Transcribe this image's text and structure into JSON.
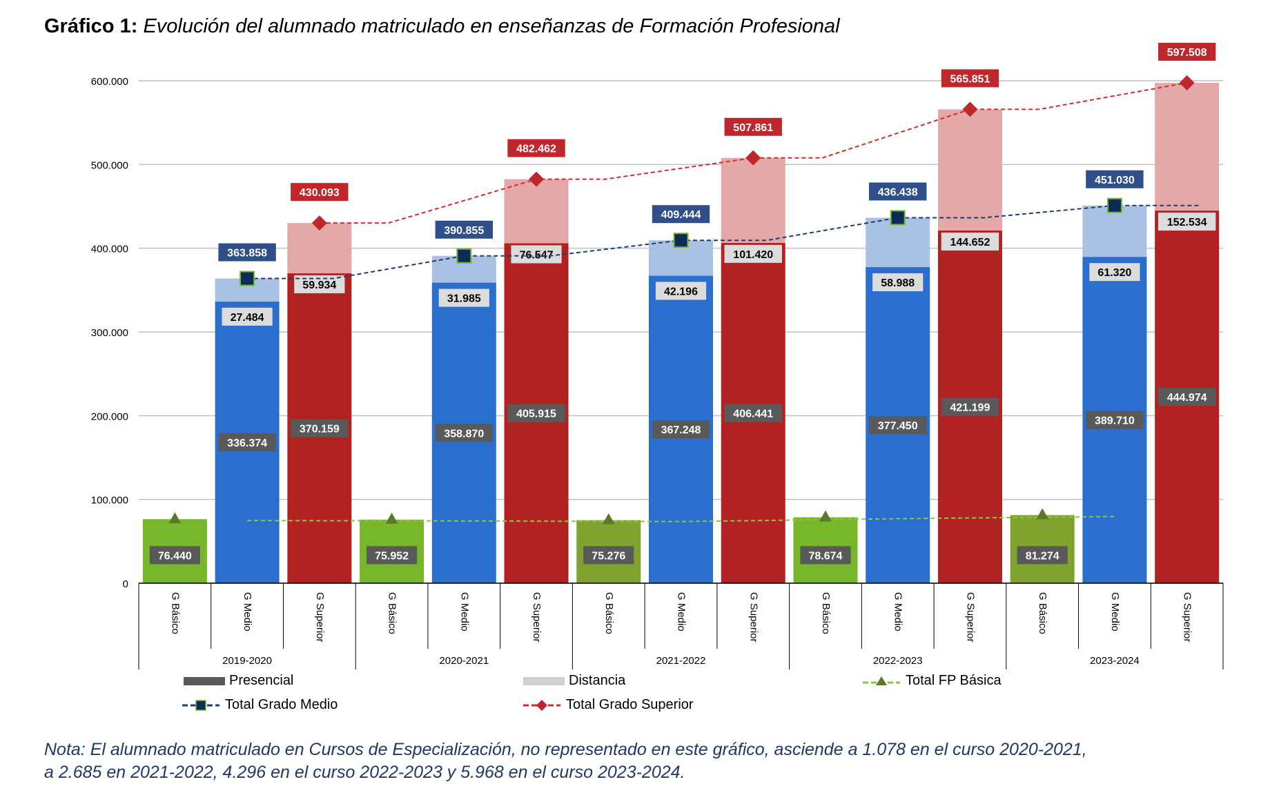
{
  "title": {
    "prefix": "Gráfico 1:",
    "text": "Evolución del alumnado matriculado en enseñanzas de Formación Profesional"
  },
  "note": {
    "line1": "Nota: El alumnado matriculado en Cursos de Especialización, no representado en este gráfico, asciende a 1.078 en el curso 2020-2021,",
    "line2": "a 2.685 en 2021-2022, 4.296 en el curso 2022-2023 y 5.968 en el curso 2023-2024."
  },
  "legend": {
    "presencial": "Presencial",
    "distancia": "Distancia",
    "total_basica": "Total FP Básica",
    "total_medio": "Total Grado Medio",
    "total_superior": "Total Grado Superior"
  },
  "colors": {
    "basica": "#76b82a",
    "basica_alt": "#7fa32c",
    "medio": "#2a6fce",
    "medio_dist": "#a9c1e3",
    "superior": "#b22222",
    "superior_dist": "#e5a8a8",
    "total_medio_line": "#1f3a6e",
    "total_medio_marker": "#0e2a5a",
    "total_superior_line": "#d42a2a",
    "total_basica_line": "#8dc63f",
    "label_box": "#595959",
    "grid": "#bfbfbf"
  },
  "chart_data": {
    "type": "bar",
    "stacked": true,
    "ylim": [
      0,
      600000
    ],
    "yticks": [
      "0",
      "100.000",
      "200.000",
      "300.000",
      "400.000",
      "500.000",
      "600.000"
    ],
    "ytick_values": [
      0,
      100000,
      200000,
      300000,
      400000,
      500000,
      600000
    ],
    "groups": [
      "2019-2020",
      "2020-2021",
      "2021-2022",
      "2022-2023",
      "2023-2024"
    ],
    "levels": [
      "G Básico",
      "G Medio",
      "G Superior"
    ],
    "series": [
      {
        "name": "Presencial",
        "basico": [
          76440,
          75952,
          75276,
          78674,
          81274
        ],
        "basico_labels": [
          "76.440",
          "75.952",
          "75.276",
          "78.674",
          "81.274"
        ],
        "medio": [
          336374,
          358870,
          367248,
          377450,
          389710
        ],
        "medio_labels": [
          "336.374",
          "358.870",
          "367.248",
          "377.450",
          "389.710"
        ],
        "superior": [
          370159,
          405915,
          406441,
          421199,
          444974
        ],
        "superior_labels": [
          "370.159",
          "405.915",
          "406.441",
          "421.199",
          "444.974"
        ]
      },
      {
        "name": "Distancia",
        "medio": [
          27484,
          31985,
          42196,
          58988,
          61320
        ],
        "medio_labels": [
          "27.484",
          "31.985",
          "42.196",
          "58.988",
          "61.320"
        ],
        "superior": [
          59934,
          76547,
          101420,
          144652,
          152534
        ],
        "superior_labels": [
          "59.934",
          "76.547",
          "101.420",
          "144.652",
          "152.534"
        ]
      }
    ],
    "totals": {
      "medio": [
        363858,
        390855,
        409444,
        436438,
        451030
      ],
      "medio_labels": [
        "363.858",
        "390.855",
        "409.444",
        "436.438",
        "451.030"
      ],
      "superior": [
        430093,
        482462,
        507861,
        565851,
        597508
      ],
      "superior_labels": [
        "430.093",
        "482.462",
        "507.861",
        "565.851",
        "597.508"
      ],
      "basica": [
        76440,
        75952,
        75276,
        78674,
        81274
      ]
    }
  }
}
